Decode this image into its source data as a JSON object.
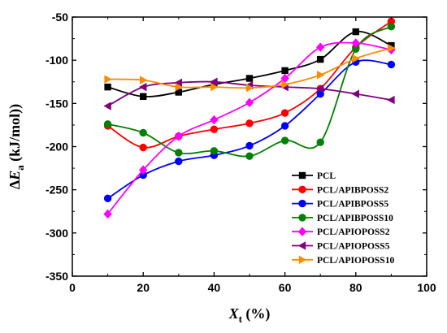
{
  "chart_data": {
    "type": "line",
    "title": "",
    "xlabel": {
      "main": "X",
      "sub": "t",
      "unit": " (%)"
    },
    "ylabel": {
      "prefix": "Δ",
      "main": "E",
      "sub": "a",
      "unit": " (kJ/mol))"
    },
    "xlim": [
      0,
      100
    ],
    "ylim": [
      -350,
      -50
    ],
    "xticks": [
      0,
      20,
      40,
      60,
      80,
      100
    ],
    "yticks": [
      -350,
      -300,
      -250,
      -200,
      -150,
      -100,
      -50
    ],
    "grid": false,
    "legend_position": "bottom-right",
    "x": [
      10,
      20,
      30,
      40,
      50,
      60,
      70,
      80,
      90
    ],
    "series": [
      {
        "name": "PCL",
        "color": "#000000",
        "marker": "square",
        "values": [
          -131,
          -142,
          -137,
          -128,
          -121,
          -112,
          -99,
          -67,
          -83
        ]
      },
      {
        "name": "PCL/APIBPOSS2",
        "color": "#ff0000",
        "marker": "circle",
        "values": [
          -176,
          -201,
          -188,
          -180,
          -173,
          -161,
          -133,
          -85,
          -55
        ]
      },
      {
        "name": "PCL/APIBPOSS5",
        "color": "#0000ff",
        "marker": "circle",
        "values": [
          -260,
          -233,
          -217,
          -210,
          -199,
          -176,
          -139,
          -102,
          -105
        ]
      },
      {
        "name": "PCL/APIBPOSS10",
        "color": "#008000",
        "marker": "circle",
        "values": [
          -174,
          -184,
          -207,
          -205,
          -211,
          -193,
          -195,
          -87,
          -61
        ]
      },
      {
        "name": "PCL/APIOPOSS2",
        "color": "#ff00ff",
        "marker": "diamond",
        "values": [
          -278,
          -227,
          -188,
          -169,
          -149,
          -121,
          -85,
          -80,
          -88
        ]
      },
      {
        "name": "PCL/APIOPOSS5",
        "color": "#800080",
        "marker": "triangle-left",
        "values": [
          -153,
          -131,
          -126,
          -125,
          -129,
          -131,
          -133,
          -139,
          -146
        ]
      },
      {
        "name": "PCL/APIOPOSS10",
        "color": "#ff8c00",
        "marker": "triangle-right",
        "values": [
          -122,
          -123,
          -131,
          -131,
          -132,
          -128,
          -117,
          -98,
          -86
        ]
      }
    ]
  }
}
